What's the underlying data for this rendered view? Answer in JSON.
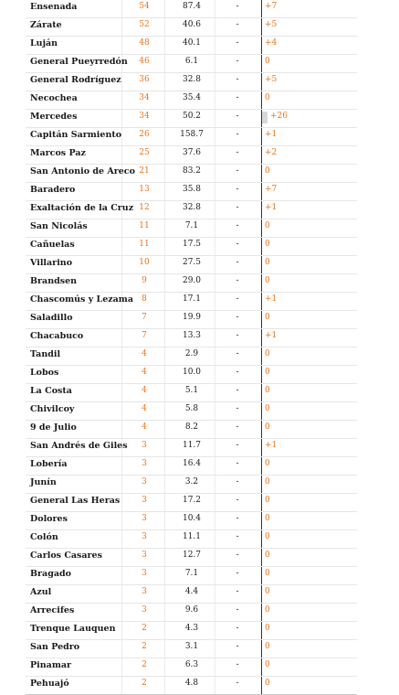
{
  "rows": [
    {
      "name": "Ensenada",
      "count": "54",
      "rate": "87.4",
      "dash": "-",
      "delta": "+7"
    },
    {
      "name": "Zárate",
      "count": "52",
      "rate": "40.6",
      "dash": "-",
      "delta": "+5"
    },
    {
      "name": "Luján",
      "count": "48",
      "rate": "40.1",
      "dash": "-",
      "delta": "+4"
    },
    {
      "name": "General Pueyrredón",
      "count": "46",
      "rate": "6.1",
      "dash": "-",
      "delta": "0"
    },
    {
      "name": "General Rodríguez",
      "count": "36",
      "rate": "32.8",
      "dash": "-",
      "delta": "+5"
    },
    {
      "name": "Necochea",
      "count": "34",
      "rate": "35.4",
      "dash": "-",
      "delta": "0"
    },
    {
      "name": "Mercedes",
      "count": "34",
      "rate": "50.2",
      "dash": "-",
      "delta": "+26"
    },
    {
      "name": "Capitán Sarmiento",
      "count": "26",
      "rate": "158.7",
      "dash": "-",
      "delta": "+1"
    },
    {
      "name": "Marcos Paz",
      "count": "25",
      "rate": "37.6",
      "dash": "-",
      "delta": "+2"
    },
    {
      "name": "San Antonio de Areco",
      "count": "21",
      "rate": "83.2",
      "dash": "-",
      "delta": "0"
    },
    {
      "name": "Baradero",
      "count": "13",
      "rate": "35.8",
      "dash": "-",
      "delta": "+7"
    },
    {
      "name": "Exaltación de la Cruz",
      "count": "12",
      "rate": "32.8",
      "dash": "-",
      "delta": "+1"
    },
    {
      "name": "San Nicolás",
      "count": "11",
      "rate": "7.1",
      "dash": "-",
      "delta": "0"
    },
    {
      "name": "Cañuelas",
      "count": "11",
      "rate": "17.5",
      "dash": "-",
      "delta": "0"
    },
    {
      "name": "Villarino",
      "count": "10",
      "rate": "27.5",
      "dash": "-",
      "delta": "0"
    },
    {
      "name": "Brandsen",
      "count": "9",
      "rate": "29.0",
      "dash": "-",
      "delta": "0"
    },
    {
      "name": "Chascomús y Lezama",
      "count": "8",
      "rate": "17.1",
      "dash": "-",
      "delta": "+1"
    },
    {
      "name": "Saladillo",
      "count": "7",
      "rate": "19.9",
      "dash": "-",
      "delta": "0"
    },
    {
      "name": "Chacabuco",
      "count": "7",
      "rate": "13.3",
      "dash": "-",
      "delta": "+1"
    },
    {
      "name": "Tandil",
      "count": "4",
      "rate": "2.9",
      "dash": "-",
      "delta": "0"
    },
    {
      "name": "Lobos",
      "count": "4",
      "rate": "10.0",
      "dash": "-",
      "delta": "0"
    },
    {
      "name": "La Costa",
      "count": "4",
      "rate": "5.1",
      "dash": "-",
      "delta": "0"
    },
    {
      "name": "Chivilcoy",
      "count": "4",
      "rate": "5.8",
      "dash": "-",
      "delta": "0"
    },
    {
      "name": "9 de Julio",
      "count": "4",
      "rate": "8.2",
      "dash": "-",
      "delta": "0"
    },
    {
      "name": "San Andrés de Giles",
      "count": "3",
      "rate": "11.7",
      "dash": "-",
      "delta": "+1"
    },
    {
      "name": "Lobería",
      "count": "3",
      "rate": "16.4",
      "dash": "-",
      "delta": "0"
    },
    {
      "name": "Junín",
      "count": "3",
      "rate": "3.2",
      "dash": "-",
      "delta": "0"
    },
    {
      "name": "General Las Heras",
      "count": "3",
      "rate": "17.2",
      "dash": "-",
      "delta": "0"
    },
    {
      "name": "Dolores",
      "count": "3",
      "rate": "10.4",
      "dash": "-",
      "delta": "0"
    },
    {
      "name": "Colón",
      "count": "3",
      "rate": "11.1",
      "dash": "-",
      "delta": "0"
    },
    {
      "name": "Carlos Casares",
      "count": "3",
      "rate": "12.7",
      "dash": "-",
      "delta": "0"
    },
    {
      "name": "Bragado",
      "count": "3",
      "rate": "7.1",
      "dash": "-",
      "delta": "0"
    },
    {
      "name": "Azul",
      "count": "3",
      "rate": "4.4",
      "dash": "-",
      "delta": "0"
    },
    {
      "name": "Arrecifes",
      "count": "3",
      "rate": "9.6",
      "dash": "-",
      "delta": "0"
    },
    {
      "name": "Trenque Lauquen",
      "count": "2",
      "rate": "4.3",
      "dash": "-",
      "delta": "0"
    },
    {
      "name": "San Pedro",
      "count": "2",
      "rate": "3.1",
      "dash": "-",
      "delta": "0"
    },
    {
      "name": "Pinamar",
      "count": "2",
      "rate": "6.3",
      "dash": "-",
      "delta": "0"
    },
    {
      "name": "Pehuajó",
      "count": "2",
      "rate": "4.8",
      "dash": "-",
      "delta": "0"
    }
  ],
  "colors": {
    "accent": "#e8731c",
    "text": "#1a1a1a",
    "highlight_bar": "#d8d8d8"
  }
}
